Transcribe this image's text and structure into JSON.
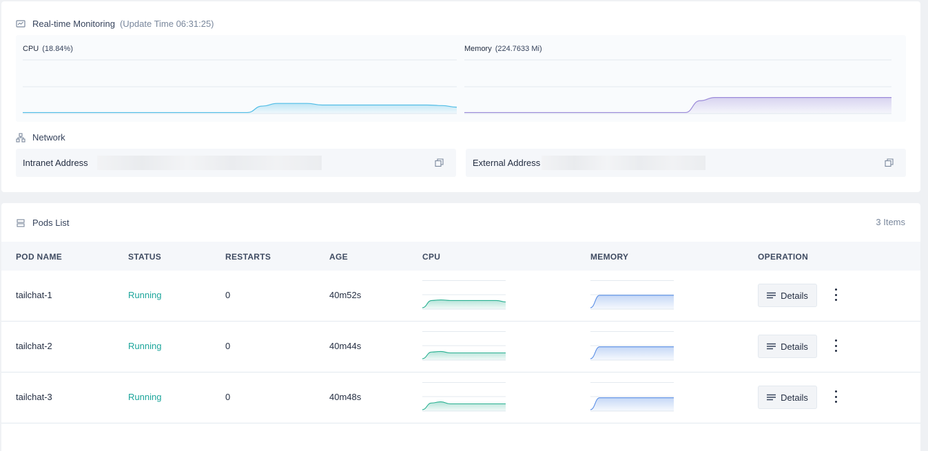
{
  "monitoring": {
    "title": "Real-time Monitoring",
    "update_label": "(Update Time  06:31:25)",
    "cpu": {
      "label": "CPU",
      "value": "(18.84%)",
      "series": [
        0.02,
        0.02,
        0.02,
        0.02,
        0.02,
        0.02,
        0.02,
        0.02,
        0.02,
        0.02,
        0.02,
        0.02,
        0.02,
        0.02,
        0.02,
        0.02,
        0.14,
        0.19,
        0.19,
        0.19,
        0.16,
        0.16,
        0.16,
        0.16,
        0.16,
        0.16,
        0.16,
        0.16,
        0.15,
        0.12
      ]
    },
    "memory": {
      "label": "Memory",
      "value": "(224.7633 Mi)",
      "series": [
        0.02,
        0.02,
        0.02,
        0.02,
        0.02,
        0.02,
        0.02,
        0.02,
        0.02,
        0.02,
        0.02,
        0.02,
        0.02,
        0.02,
        0.02,
        0.02,
        0.24,
        0.3,
        0.3,
        0.3,
        0.3,
        0.3,
        0.3,
        0.3,
        0.3,
        0.3,
        0.3,
        0.3,
        0.3,
        0.3
      ]
    }
  },
  "network": {
    "title": "Network",
    "intranet_label": "Intranet Address",
    "external_label": "External Address"
  },
  "pods": {
    "title": "Pods List",
    "count": "3 Items",
    "columns": [
      "POD NAME",
      "STATUS",
      "RESTARTS",
      "AGE",
      "CPU",
      "MEMORY",
      "OPERATION"
    ],
    "details_label": "Details",
    "rows": [
      {
        "name": "tailchat-1",
        "status": "Running",
        "restarts": "0",
        "age": "40m52s",
        "cpu": [
          0.05,
          0.3,
          0.32,
          0.3,
          0.3,
          0.3,
          0.3,
          0.3,
          0.3,
          0.25
        ],
        "memory": [
          0.05,
          0.48,
          0.48,
          0.48,
          0.48,
          0.48,
          0.48,
          0.48,
          0.48,
          0.48
        ]
      },
      {
        "name": "tailchat-2",
        "status": "Running",
        "restarts": "0",
        "age": "40m44s",
        "cpu": [
          0.05,
          0.28,
          0.3,
          0.25,
          0.25,
          0.25,
          0.25,
          0.25,
          0.25,
          0.25
        ],
        "memory": [
          0.05,
          0.46,
          0.46,
          0.46,
          0.46,
          0.46,
          0.46,
          0.46,
          0.46,
          0.46
        ]
      },
      {
        "name": "tailchat-3",
        "status": "Running",
        "restarts": "0",
        "age": "40m48s",
        "cpu": [
          0.05,
          0.28,
          0.32,
          0.25,
          0.25,
          0.25,
          0.25,
          0.25,
          0.25,
          0.25
        ],
        "memory": [
          0.05,
          0.46,
          0.46,
          0.46,
          0.46,
          0.46,
          0.46,
          0.46,
          0.46,
          0.46
        ]
      }
    ]
  },
  "icons": {
    "monitor": "chart-panel-icon",
    "network": "network-topology-icon",
    "pods": "server-list-icon",
    "copy": "copy-icon",
    "details": "list-lines-icon",
    "more": "vertical-ellipsis-icon"
  },
  "colors": {
    "cpu": "#51bde6",
    "memory": "#9b8ad9",
    "pod_cpu": "#29b091",
    "pod_memory": "#5b8fe6",
    "running": "#1ca59b"
  }
}
